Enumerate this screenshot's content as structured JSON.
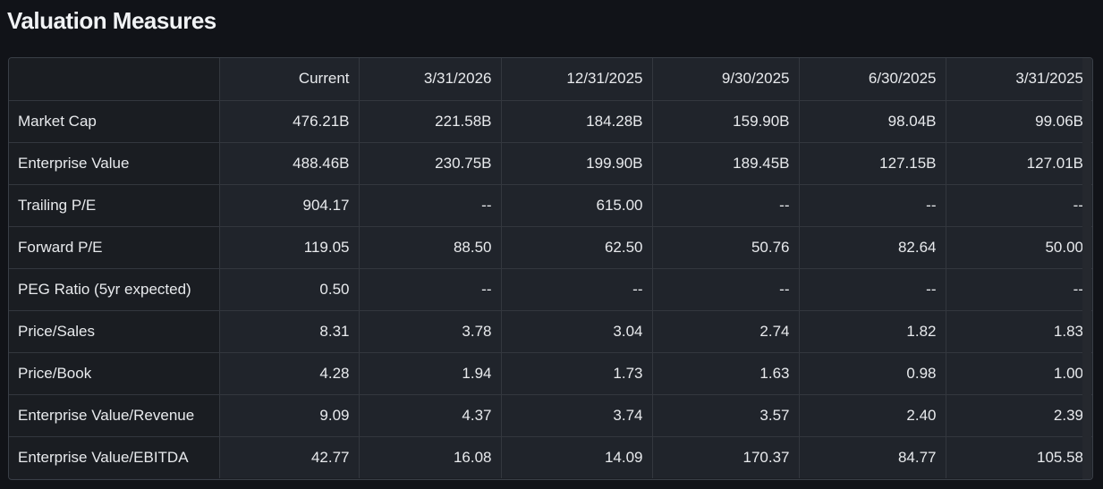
{
  "title": "Valuation Measures",
  "columns": [
    "Current",
    "3/31/2026",
    "12/31/2025",
    "9/30/2025",
    "6/30/2025",
    "3/31/2025"
  ],
  "rows": [
    {
      "label": "Market Cap",
      "values": [
        "476.21B",
        "221.58B",
        "184.28B",
        "159.90B",
        "98.04B",
        "99.06B"
      ]
    },
    {
      "label": "Enterprise Value",
      "values": [
        "488.46B",
        "230.75B",
        "199.90B",
        "189.45B",
        "127.15B",
        "127.01B"
      ]
    },
    {
      "label": "Trailing P/E",
      "values": [
        "904.17",
        "--",
        "615.00",
        "--",
        "--",
        "--"
      ]
    },
    {
      "label": "Forward P/E",
      "values": [
        "119.05",
        "88.50",
        "62.50",
        "50.76",
        "82.64",
        "50.00"
      ]
    },
    {
      "label": "PEG Ratio (5yr expected)",
      "values": [
        "0.50",
        "--",
        "--",
        "--",
        "--",
        "--"
      ]
    },
    {
      "label": "Price/Sales",
      "values": [
        "8.31",
        "3.78",
        "3.04",
        "2.74",
        "1.82",
        "1.83"
      ]
    },
    {
      "label": "Price/Book",
      "values": [
        "4.28",
        "1.94",
        "1.73",
        "1.63",
        "0.98",
        "1.00"
      ]
    },
    {
      "label": "Enterprise Value/Revenue",
      "values": [
        "9.09",
        "4.37",
        "3.74",
        "3.57",
        "2.40",
        "2.39"
      ]
    },
    {
      "label": "Enterprise Value/EBITDA",
      "values": [
        "42.77",
        "16.08",
        "14.09",
        "170.37",
        "84.77",
        "105.58"
      ]
    }
  ]
}
